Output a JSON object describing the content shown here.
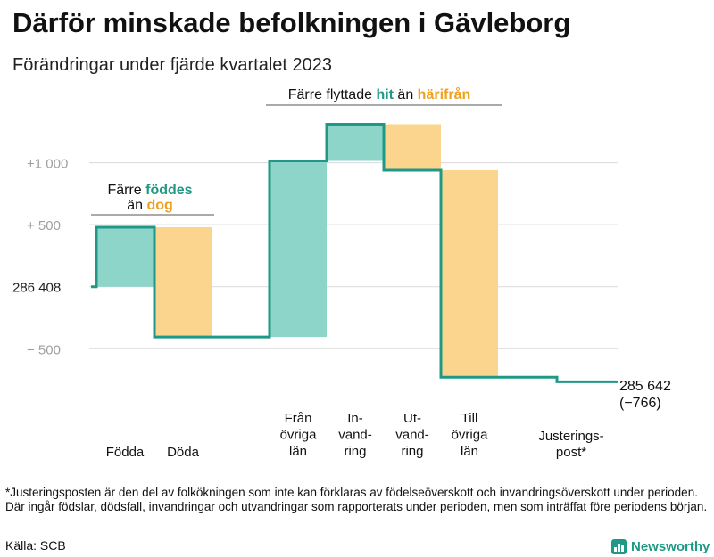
{
  "title": "Därför minskade befolkningen i Gävleborg",
  "subtitle": "Förändringar under fjärde kvartalet 2023",
  "colors": {
    "teal": "#1f9986",
    "teal_fill": "#8dd4c9",
    "orange": "#f0a020",
    "orange_fill": "#fbd58d",
    "grid": "#d9d9d9",
    "tick": "#a0a0a0"
  },
  "chart_data": {
    "type": "waterfall",
    "baseline_value": 286408,
    "start_label": "286   408",
    "end_value": 285642,
    "end_label_line1": "285 642",
    "end_label_line2": "(−766)",
    "y_ticks": [
      {
        "value": 1000,
        "label": "+1   000"
      },
      {
        "value": 500,
        "label": "+   500"
      },
      {
        "value": -500,
        "label": "−   500"
      }
    ],
    "ylim": [
      -850,
      1450
    ],
    "steps": [
      {
        "category": "Födda",
        "label_lines": [
          "Födda"
        ],
        "change": 480,
        "kind": "increase"
      },
      {
        "category": "Döda",
        "label_lines": [
          "Döda"
        ],
        "change": -885,
        "kind": "decrease"
      },
      {
        "category": "Från övriga län",
        "label_lines": [
          "Från",
          "övriga",
          "län"
        ],
        "change": 1420,
        "kind": "increase"
      },
      {
        "category": "Invandring",
        "label_lines": [
          "In-",
          "vand-",
          "ring"
        ],
        "change": 295,
        "kind": "increase"
      },
      {
        "category": "Utvandring",
        "label_lines": [
          "Ut-",
          "vand-",
          "ring"
        ],
        "change": -370,
        "kind": "decrease"
      },
      {
        "category": "Till övriga län",
        "label_lines": [
          "Till",
          "övriga",
          "län"
        ],
        "change": -1670,
        "kind": "decrease"
      },
      {
        "category": "Justeringspost*",
        "label_lines": [
          "Justerings-",
          "post*"
        ],
        "change": -36,
        "kind": "adjustment"
      }
    ],
    "annotations": [
      {
        "id": "births",
        "first_step": 0,
        "last_step": 1,
        "line1": [
          {
            "text": "Färre ",
            "style": "plain"
          },
          {
            "text": "föddes",
            "style": "teal"
          }
        ],
        "line2": [
          {
            "text": "än ",
            "style": "plain"
          },
          {
            "text": "dog",
            "style": "orange"
          }
        ]
      },
      {
        "id": "moves",
        "first_step": 2,
        "last_step": 5,
        "line1": [
          {
            "text": "Färre flyttade ",
            "style": "plain"
          },
          {
            "text": "hit",
            "style": "teal"
          },
          {
            "text": "  än ",
            "style": "plain"
          },
          {
            "text": "härifrån",
            "style": "orange"
          }
        ]
      }
    ]
  },
  "footnote": "*Justeringsposten är den del av folkökningen som inte kan förklaras av födelseöverskott och invandringsöverskott under perioden. Där ingår födslar, dödsfall, invandringar och utvandringar som rapporterats under perioden, men som inträffat före periodens början.",
  "source": "Källa: SCB",
  "logo_text": "Newsworthy"
}
